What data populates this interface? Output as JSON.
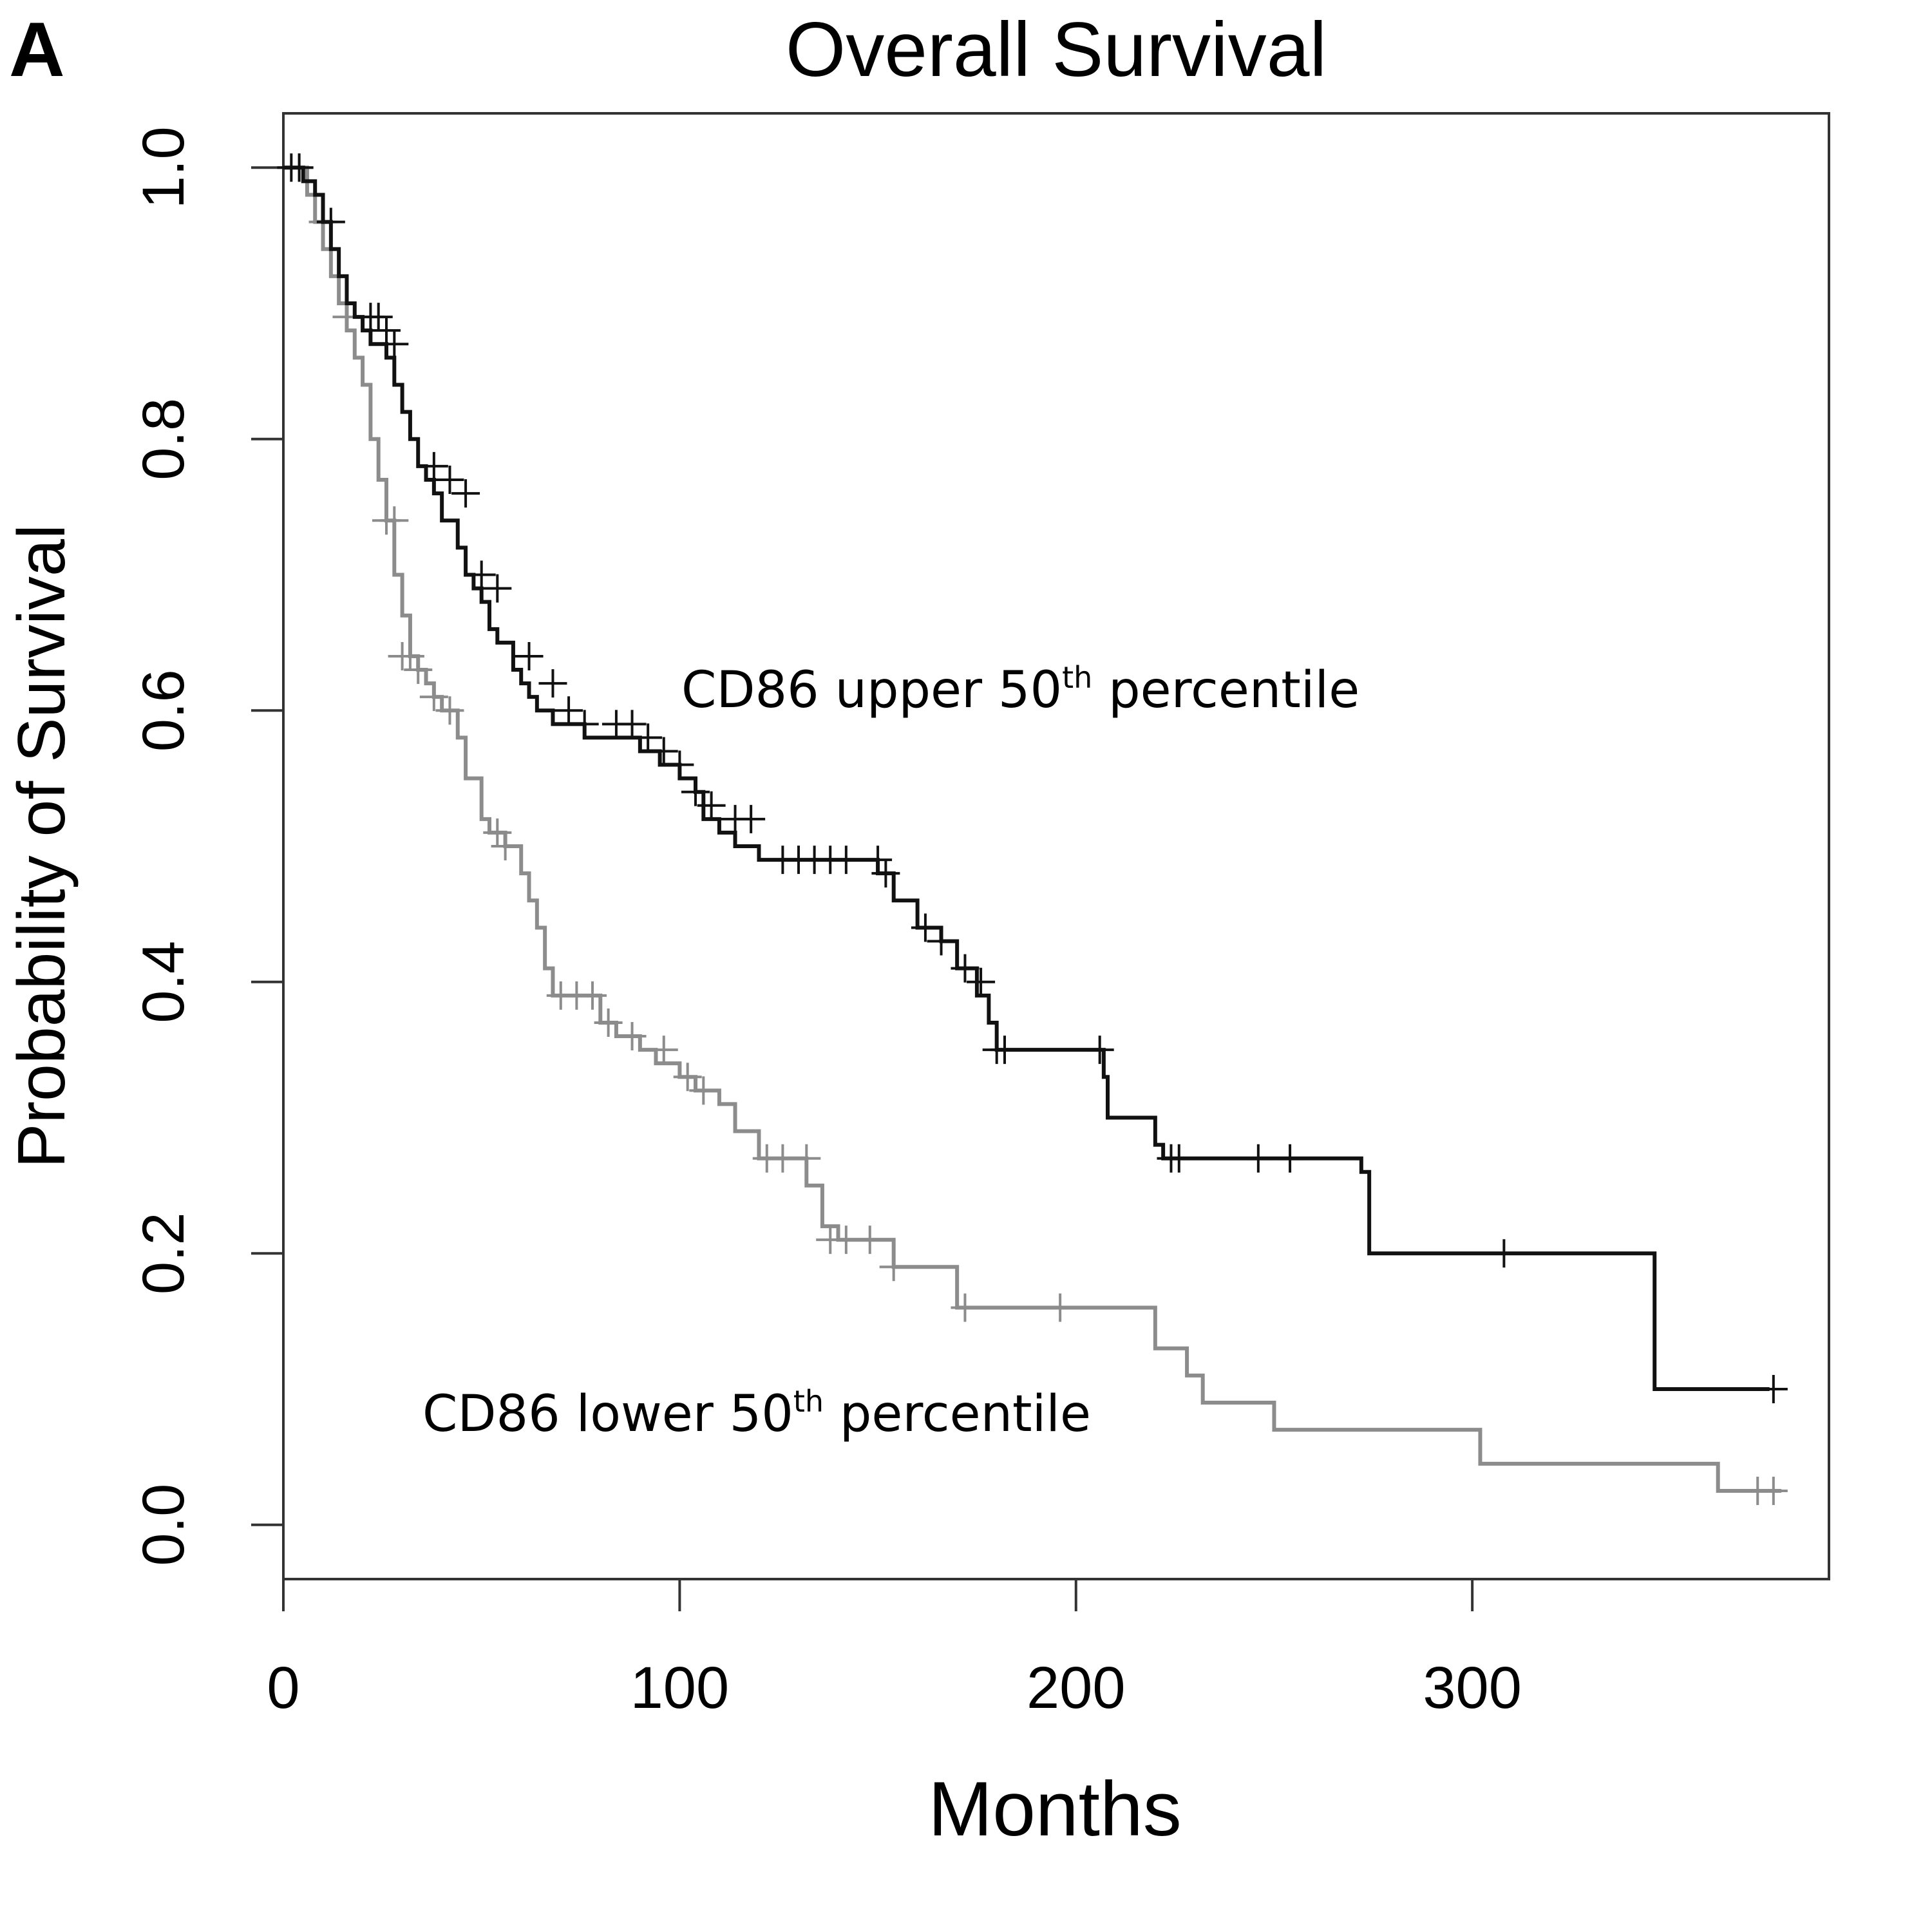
{
  "panel_label": "A",
  "chart_data": {
    "type": "line",
    "step": true,
    "title": "Overall Survival",
    "xlabel": "Months",
    "ylabel": "Probability of Survival",
    "xlim": [
      0,
      390
    ],
    "ylim": [
      -0.04,
      1.04
    ],
    "xticks": [
      0,
      100,
      200,
      300
    ],
    "yticks": [
      0.0,
      0.2,
      0.4,
      0.6,
      0.8,
      1.0
    ],
    "xtick_labels": [
      "0",
      "100",
      "200",
      "300"
    ],
    "ytick_labels": [
      "0.0",
      "0.2",
      "0.4",
      "0.6",
      "0.8",
      "1.0"
    ],
    "grid": false,
    "series": [
      {
        "name": "CD86 upper 50th percentile",
        "label_text": "CD86 upper 50",
        "label_sup": "th",
        "label_tail": " percentile",
        "color": "#111111",
        "x": [
          0,
          5,
          8,
          10,
          12,
          14,
          16,
          18,
          20,
          22,
          26,
          28,
          30,
          32,
          34,
          36,
          38,
          40,
          44,
          46,
          48,
          50,
          52,
          54,
          58,
          60,
          62,
          64,
          66,
          68,
          72,
          76,
          80,
          90,
          95,
          100,
          104,
          106,
          110,
          114,
          120,
          124,
          150,
          154,
          160,
          166,
          170,
          175,
          178,
          180,
          207,
          208,
          220,
          222,
          272,
          274,
          344,
          346,
          375
        ],
        "y": [
          1.0,
          0.99,
          0.98,
          0.96,
          0.94,
          0.92,
          0.9,
          0.89,
          0.88,
          0.87,
          0.86,
          0.84,
          0.82,
          0.8,
          0.78,
          0.77,
          0.76,
          0.74,
          0.72,
          0.7,
          0.69,
          0.68,
          0.66,
          0.65,
          0.63,
          0.62,
          0.61,
          0.6,
          0.6,
          0.59,
          0.59,
          0.58,
          0.58,
          0.57,
          0.56,
          0.55,
          0.54,
          0.52,
          0.51,
          0.5,
          0.49,
          0.49,
          0.48,
          0.46,
          0.44,
          0.43,
          0.41,
          0.39,
          0.37,
          0.35,
          0.33,
          0.3,
          0.28,
          0.27,
          0.26,
          0.2,
          0.2,
          0.1,
          0.1
        ],
        "censored": [
          [
            2,
            1.0
          ],
          [
            4,
            1.0
          ],
          [
            12,
            0.96
          ],
          [
            22,
            0.89
          ],
          [
            24,
            0.89
          ],
          [
            26,
            0.88
          ],
          [
            28,
            0.87
          ],
          [
            38,
            0.78
          ],
          [
            42,
            0.77
          ],
          [
            46,
            0.76
          ],
          [
            50,
            0.7
          ],
          [
            54,
            0.69
          ],
          [
            62,
            0.64
          ],
          [
            68,
            0.62
          ],
          [
            72,
            0.6
          ],
          [
            76,
            0.59
          ],
          [
            84,
            0.59
          ],
          [
            88,
            0.59
          ],
          [
            92,
            0.58
          ],
          [
            96,
            0.57
          ],
          [
            100,
            0.56
          ],
          [
            104,
            0.54
          ],
          [
            108,
            0.53
          ],
          [
            114,
            0.52
          ],
          [
            118,
            0.52
          ],
          [
            126,
            0.49
          ],
          [
            130,
            0.49
          ],
          [
            134,
            0.49
          ],
          [
            138,
            0.49
          ],
          [
            142,
            0.49
          ],
          [
            150,
            0.49
          ],
          [
            152,
            0.48
          ],
          [
            162,
            0.44
          ],
          [
            166,
            0.43
          ],
          [
            172,
            0.41
          ],
          [
            176,
            0.4
          ],
          [
            180,
            0.35
          ],
          [
            182,
            0.35
          ],
          [
            206,
            0.35
          ],
          [
            224,
            0.27
          ],
          [
            226,
            0.27
          ],
          [
            246,
            0.27
          ],
          [
            254,
            0.27
          ],
          [
            308,
            0.2
          ],
          [
            376,
            0.1
          ]
        ]
      },
      {
        "name": "CD86 lower 50th percentile",
        "label_text": "CD86 lower 50",
        "label_sup": "th",
        "label_tail": " percentile",
        "color": "#8c8c8c",
        "x": [
          0,
          6,
          8,
          10,
          12,
          14,
          16,
          18,
          20,
          22,
          24,
          26,
          28,
          30,
          32,
          34,
          36,
          38,
          40,
          44,
          46,
          50,
          52,
          56,
          60,
          62,
          64,
          66,
          68,
          70,
          80,
          84,
          90,
          94,
          100,
          104,
          110,
          114,
          120,
          128,
          132,
          136,
          140,
          154,
          160,
          170,
          175,
          220,
          228,
          232,
          250,
          302,
          362,
          378
        ],
        "y": [
          1.0,
          0.98,
          0.96,
          0.94,
          0.92,
          0.9,
          0.88,
          0.86,
          0.84,
          0.8,
          0.77,
          0.74,
          0.7,
          0.67,
          0.64,
          0.63,
          0.62,
          0.61,
          0.6,
          0.58,
          0.55,
          0.52,
          0.51,
          0.5,
          0.48,
          0.46,
          0.44,
          0.41,
          0.39,
          0.39,
          0.37,
          0.36,
          0.35,
          0.34,
          0.33,
          0.32,
          0.31,
          0.29,
          0.27,
          0.27,
          0.25,
          0.22,
          0.21,
          0.19,
          0.19,
          0.16,
          0.16,
          0.13,
          0.11,
          0.09,
          0.07,
          0.045,
          0.025,
          0.025
        ],
        "censored": [
          [
            4,
            1.0
          ],
          [
            10,
            0.96
          ],
          [
            16,
            0.89
          ],
          [
            26,
            0.74
          ],
          [
            28,
            0.74
          ],
          [
            30,
            0.64
          ],
          [
            32,
            0.64
          ],
          [
            34,
            0.63
          ],
          [
            38,
            0.61
          ],
          [
            42,
            0.6
          ],
          [
            54,
            0.51
          ],
          [
            56,
            0.5
          ],
          [
            70,
            0.39
          ],
          [
            74,
            0.39
          ],
          [
            78,
            0.39
          ],
          [
            82,
            0.37
          ],
          [
            88,
            0.36
          ],
          [
            96,
            0.35
          ],
          [
            102,
            0.33
          ],
          [
            106,
            0.32
          ],
          [
            122,
            0.27
          ],
          [
            126,
            0.27
          ],
          [
            132,
            0.27
          ],
          [
            138,
            0.21
          ],
          [
            142,
            0.21
          ],
          [
            148,
            0.21
          ],
          [
            154,
            0.19
          ],
          [
            172,
            0.16
          ],
          [
            196,
            0.16
          ],
          [
            372,
            0.025
          ],
          [
            376,
            0.025
          ]
        ]
      }
    ]
  }
}
